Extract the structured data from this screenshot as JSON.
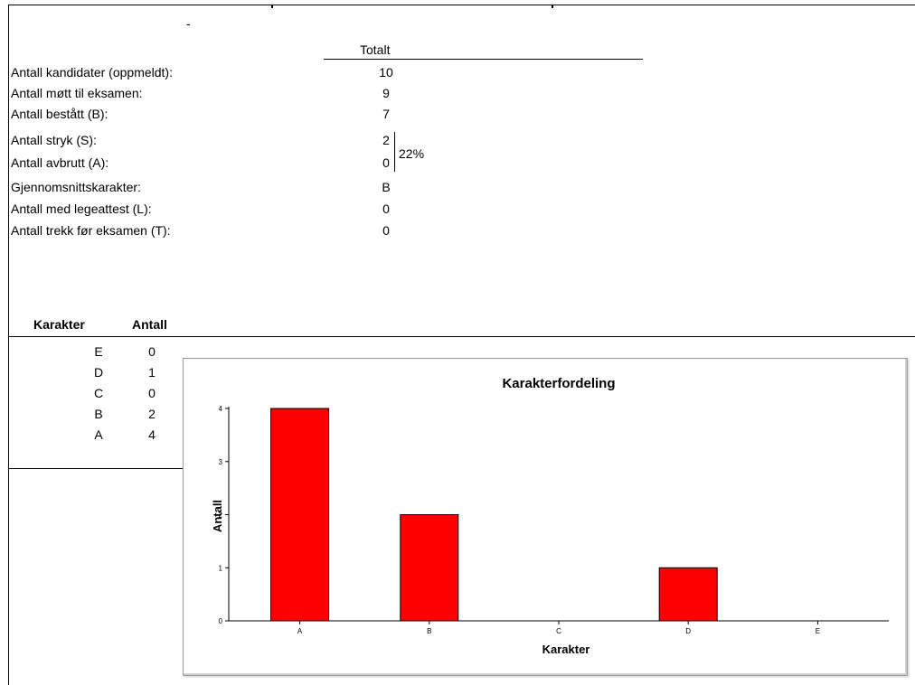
{
  "summary": {
    "dash": "-",
    "column_header": "Totalt",
    "rows": [
      {
        "label": "Antall kandidater (oppmeldt):",
        "value": "10"
      },
      {
        "label": "Antall møtt til eksamen:",
        "value": "9"
      },
      {
        "label": "Antall bestått (B):",
        "value": "7"
      },
      {
        "label": "Antall stryk (S):",
        "value": "2"
      },
      {
        "label": "Antall avbrutt (A):",
        "value": "0"
      },
      {
        "label": "Gjennomsnittskarakter:",
        "value": "B"
      },
      {
        "label": "Antall med legeattest (L):",
        "value": "0"
      },
      {
        "label": "Antall trekk før eksamen (T):",
        "value": "0"
      }
    ],
    "fail_percentage": "22%"
  },
  "grades_table": {
    "headers": [
      "Karakter",
      "Antall"
    ],
    "rows": [
      {
        "grade": "E",
        "count": "0"
      },
      {
        "grade": "D",
        "count": "1"
      },
      {
        "grade": "C",
        "count": "0"
      },
      {
        "grade": "B",
        "count": "2"
      },
      {
        "grade": "A",
        "count": "4"
      }
    ]
  },
  "chart_data": {
    "type": "bar",
    "title": "Karakterfordeling",
    "xlabel": "Karakter",
    "ylabel": "Antall",
    "categories": [
      "A",
      "B",
      "C",
      "D",
      "E"
    ],
    "values": [
      4,
      2,
      0,
      1,
      0
    ],
    "ylim": [
      0,
      4
    ],
    "yticks": [
      "0",
      "1",
      "2",
      "3",
      "4"
    ],
    "bar_color": "#ff0000",
    "grid": false,
    "legend": "none"
  }
}
